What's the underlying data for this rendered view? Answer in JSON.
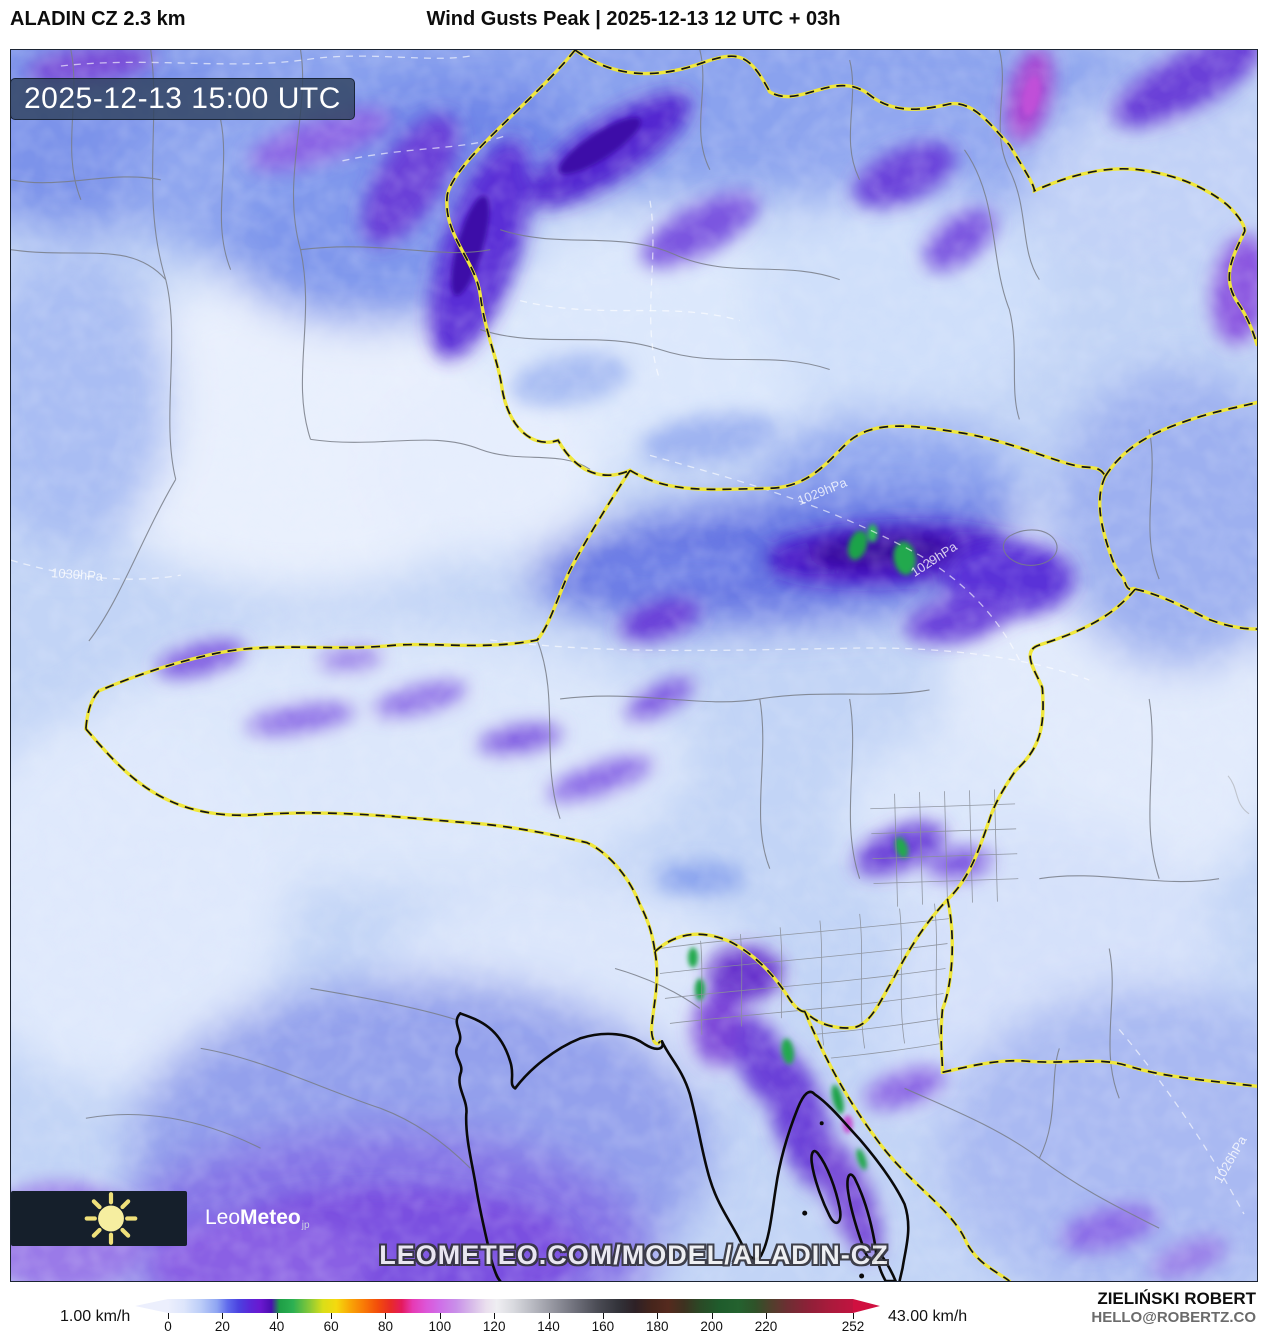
{
  "header": {
    "model_label": "ALADIN CZ 2.3 km",
    "title": "Wind Gusts Peak | 2025-12-13 12 UTC + 03h"
  },
  "map_overlay": {
    "timestamp": "2025-12-13 15:00 UTC",
    "watermark": "LEOMETEO.COM/MODEL/ALADIN-CZ",
    "isobar_labels": [
      {
        "text": "1029hPa"
      },
      {
        "text": "1029hPa"
      },
      {
        "text": "1030hPa"
      },
      {
        "text": "1026hPa"
      }
    ]
  },
  "logo": {
    "prefix": "Leo",
    "bold": "Meteo",
    "suffix": "jp"
  },
  "legend": {
    "min_label": "1.00 km/h",
    "max_label": "43.00 km/h",
    "unit": "km/h",
    "max_value": 252,
    "ticks": [
      0,
      20,
      40,
      60,
      80,
      100,
      120,
      140,
      160,
      180,
      200,
      220,
      252
    ],
    "arrow_left_color": "#eceffd",
    "arrow_right_color": "#d01040",
    "gradient_stops": [
      {
        "v": 0,
        "c": "#eceffd"
      },
      {
        "v": 6,
        "c": "#dde5fb"
      },
      {
        "v": 12,
        "c": "#bccdf8"
      },
      {
        "v": 18,
        "c": "#8fa5f2"
      },
      {
        "v": 22,
        "c": "#5f6aec"
      },
      {
        "v": 26,
        "c": "#4b42e0"
      },
      {
        "v": 30,
        "c": "#5a28d8"
      },
      {
        "v": 34,
        "c": "#6a18d0"
      },
      {
        "v": 38,
        "c": "#4a0fb0"
      },
      {
        "v": 41,
        "c": "#1e9e46"
      },
      {
        "v": 46,
        "c": "#2cb052"
      },
      {
        "v": 52,
        "c": "#86c838"
      },
      {
        "v": 57,
        "c": "#dade18"
      },
      {
        "v": 62,
        "c": "#f5d90e"
      },
      {
        "v": 67,
        "c": "#f9a606"
      },
      {
        "v": 72,
        "c": "#f97a06"
      },
      {
        "v": 77,
        "c": "#f34e0a"
      },
      {
        "v": 82,
        "c": "#e82a28"
      },
      {
        "v": 86,
        "c": "#e41a5e"
      },
      {
        "v": 90,
        "c": "#e63ab4"
      },
      {
        "v": 95,
        "c": "#dc55d8"
      },
      {
        "v": 100,
        "c": "#cf6ee8"
      },
      {
        "v": 106,
        "c": "#c98fe9"
      },
      {
        "v": 112,
        "c": "#d8bce9"
      },
      {
        "v": 117,
        "c": "#eadfee"
      },
      {
        "v": 121,
        "c": "#efeef2"
      },
      {
        "v": 127,
        "c": "#d9dadf"
      },
      {
        "v": 134,
        "c": "#b9bac2"
      },
      {
        "v": 142,
        "c": "#93949e"
      },
      {
        "v": 150,
        "c": "#6e6f7a"
      },
      {
        "v": 158,
        "c": "#4b4c55"
      },
      {
        "v": 166,
        "c": "#323239"
      },
      {
        "v": 172,
        "c": "#2e2126"
      },
      {
        "v": 178,
        "c": "#46251c"
      },
      {
        "v": 184,
        "c": "#552a1e"
      },
      {
        "v": 190,
        "c": "#3d3220"
      },
      {
        "v": 196,
        "c": "#2a4a26"
      },
      {
        "v": 203,
        "c": "#1f5c2c"
      },
      {
        "v": 210,
        "c": "#24622f"
      },
      {
        "v": 216,
        "c": "#2f5229"
      },
      {
        "v": 222,
        "c": "#513f2c"
      },
      {
        "v": 228,
        "c": "#6e2e33"
      },
      {
        "v": 236,
        "c": "#8f2038"
      },
      {
        "v": 244,
        "c": "#ab1a3c"
      },
      {
        "v": 252,
        "c": "#c01440"
      }
    ]
  },
  "credits": {
    "name": "ZIELIŃSKI ROBERT",
    "email": "HELLO@ROBERTZ.CO"
  }
}
